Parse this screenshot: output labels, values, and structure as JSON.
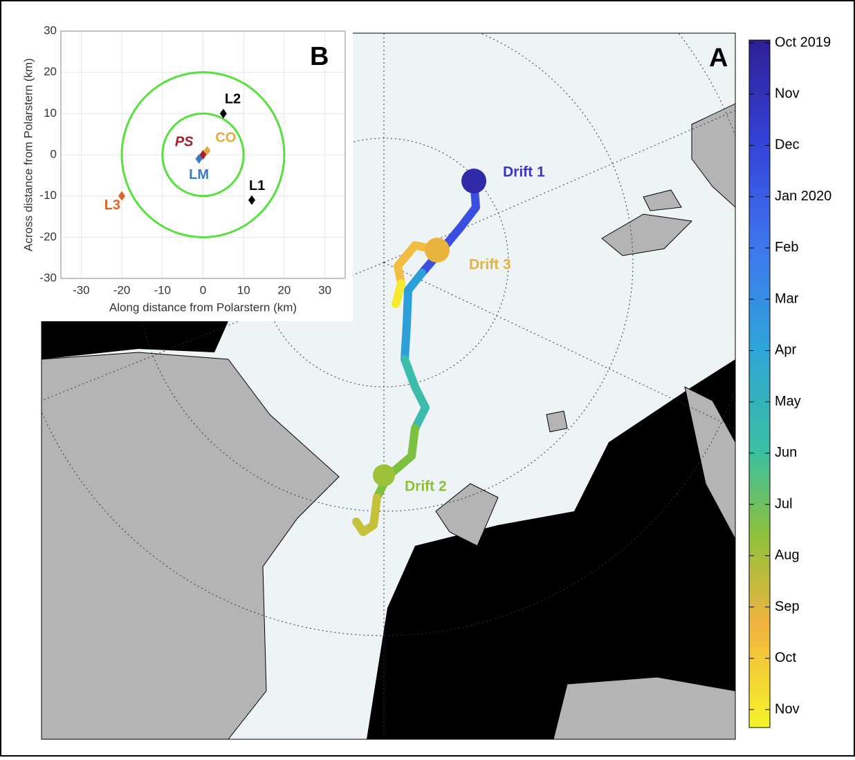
{
  "panel_a": {
    "label": "A",
    "drift_labels": [
      {
        "text": "Drift 1",
        "color": "#3b35c8"
      },
      {
        "text": "Drift 2",
        "color": "#8ebf3a"
      },
      {
        "text": "Drift 3",
        "color": "#e3b43c"
      }
    ],
    "colorbar": {
      "ticks": [
        "Oct 2019",
        "Nov",
        "Dec",
        "Jan 2020",
        "Feb",
        "Mar",
        "Apr",
        "May",
        "Jun",
        "Jul",
        "Aug",
        "Sep",
        "Oct",
        "Nov"
      ]
    }
  },
  "chart_data": {
    "type": "scatter",
    "panel_label": "B",
    "xlabel": "Along distance from Polarstern (km)",
    "ylabel": "Across distance from Polarstern (km)",
    "xlim": [
      -35,
      35
    ],
    "ylim": [
      -30,
      30
    ],
    "xticks": [
      -30,
      -20,
      -10,
      0,
      10,
      20,
      30
    ],
    "yticks": [
      -30,
      -20,
      -10,
      0,
      10,
      20,
      30
    ],
    "grid": true,
    "circle_radii": [
      10,
      20
    ],
    "circle_color": "#55e03c",
    "series": [
      {
        "name": "PS",
        "color": "#a3202e",
        "x": [
          0
        ],
        "values": [
          0
        ]
      },
      {
        "name": "CO",
        "color": "#e8a93a",
        "x": [
          1
        ],
        "values": [
          1
        ]
      },
      {
        "name": "LM",
        "color": "#3b78c4",
        "x": [
          -1
        ],
        "values": [
          -1
        ]
      },
      {
        "name": "L1",
        "color": "#000000",
        "x": [
          12
        ],
        "values": [
          -11
        ]
      },
      {
        "name": "L2",
        "color": "#000000",
        "x": [
          5
        ],
        "values": [
          10
        ]
      },
      {
        "name": "L3",
        "color": "#e0622a",
        "x": [
          -20
        ],
        "values": [
          -10
        ]
      }
    ]
  }
}
